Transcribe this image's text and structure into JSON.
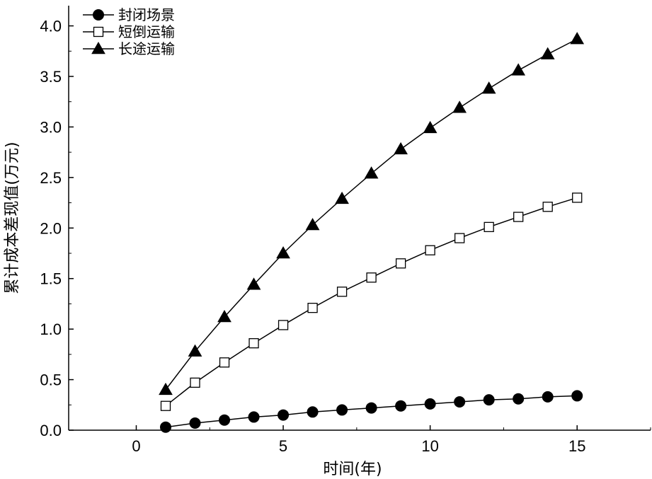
{
  "chart_data": {
    "type": "line",
    "xlabel": "时间(年)",
    "ylabel": "累计成本差现值(万元)",
    "xlim": [
      -2.3,
      17.5
    ],
    "ylim": [
      0,
      4.2
    ],
    "xticks": [
      0,
      5,
      10,
      15
    ],
    "yticks": [
      0.0,
      0.5,
      1.0,
      1.5,
      2.0,
      2.5,
      3.0,
      3.5,
      4.0
    ],
    "xtick_labels": [
      "0",
      "5",
      "10",
      "15"
    ],
    "ytick_labels": [
      "0.0",
      "0.5",
      "1.0",
      "1.5",
      "2.0",
      "2.5",
      "3.0",
      "3.5",
      "4.0"
    ],
    "grid": false,
    "legend_position": "top-left",
    "x": [
      1,
      2,
      3,
      4,
      5,
      6,
      7,
      8,
      9,
      10,
      11,
      12,
      13,
      14,
      15
    ],
    "series": [
      {
        "name": "封闭场景",
        "marker": "filled-circle",
        "color": "#000000",
        "values": [
          0.03,
          0.07,
          0.1,
          0.13,
          0.15,
          0.18,
          0.2,
          0.22,
          0.24,
          0.26,
          0.28,
          0.3,
          0.31,
          0.33,
          0.34
        ]
      },
      {
        "name": "短倒运输",
        "marker": "hollow-square",
        "color": "#000000",
        "values": [
          0.24,
          0.47,
          0.67,
          0.86,
          1.04,
          1.21,
          1.37,
          1.51,
          1.65,
          1.78,
          1.9,
          2.01,
          2.11,
          2.21,
          2.3
        ]
      },
      {
        "name": "长途运输",
        "marker": "filled-triangle",
        "color": "#000000",
        "values": [
          0.4,
          0.78,
          1.12,
          1.44,
          1.75,
          2.03,
          2.29,
          2.54,
          2.78,
          2.99,
          3.19,
          3.38,
          3.56,
          3.72,
          3.87
        ]
      }
    ]
  }
}
